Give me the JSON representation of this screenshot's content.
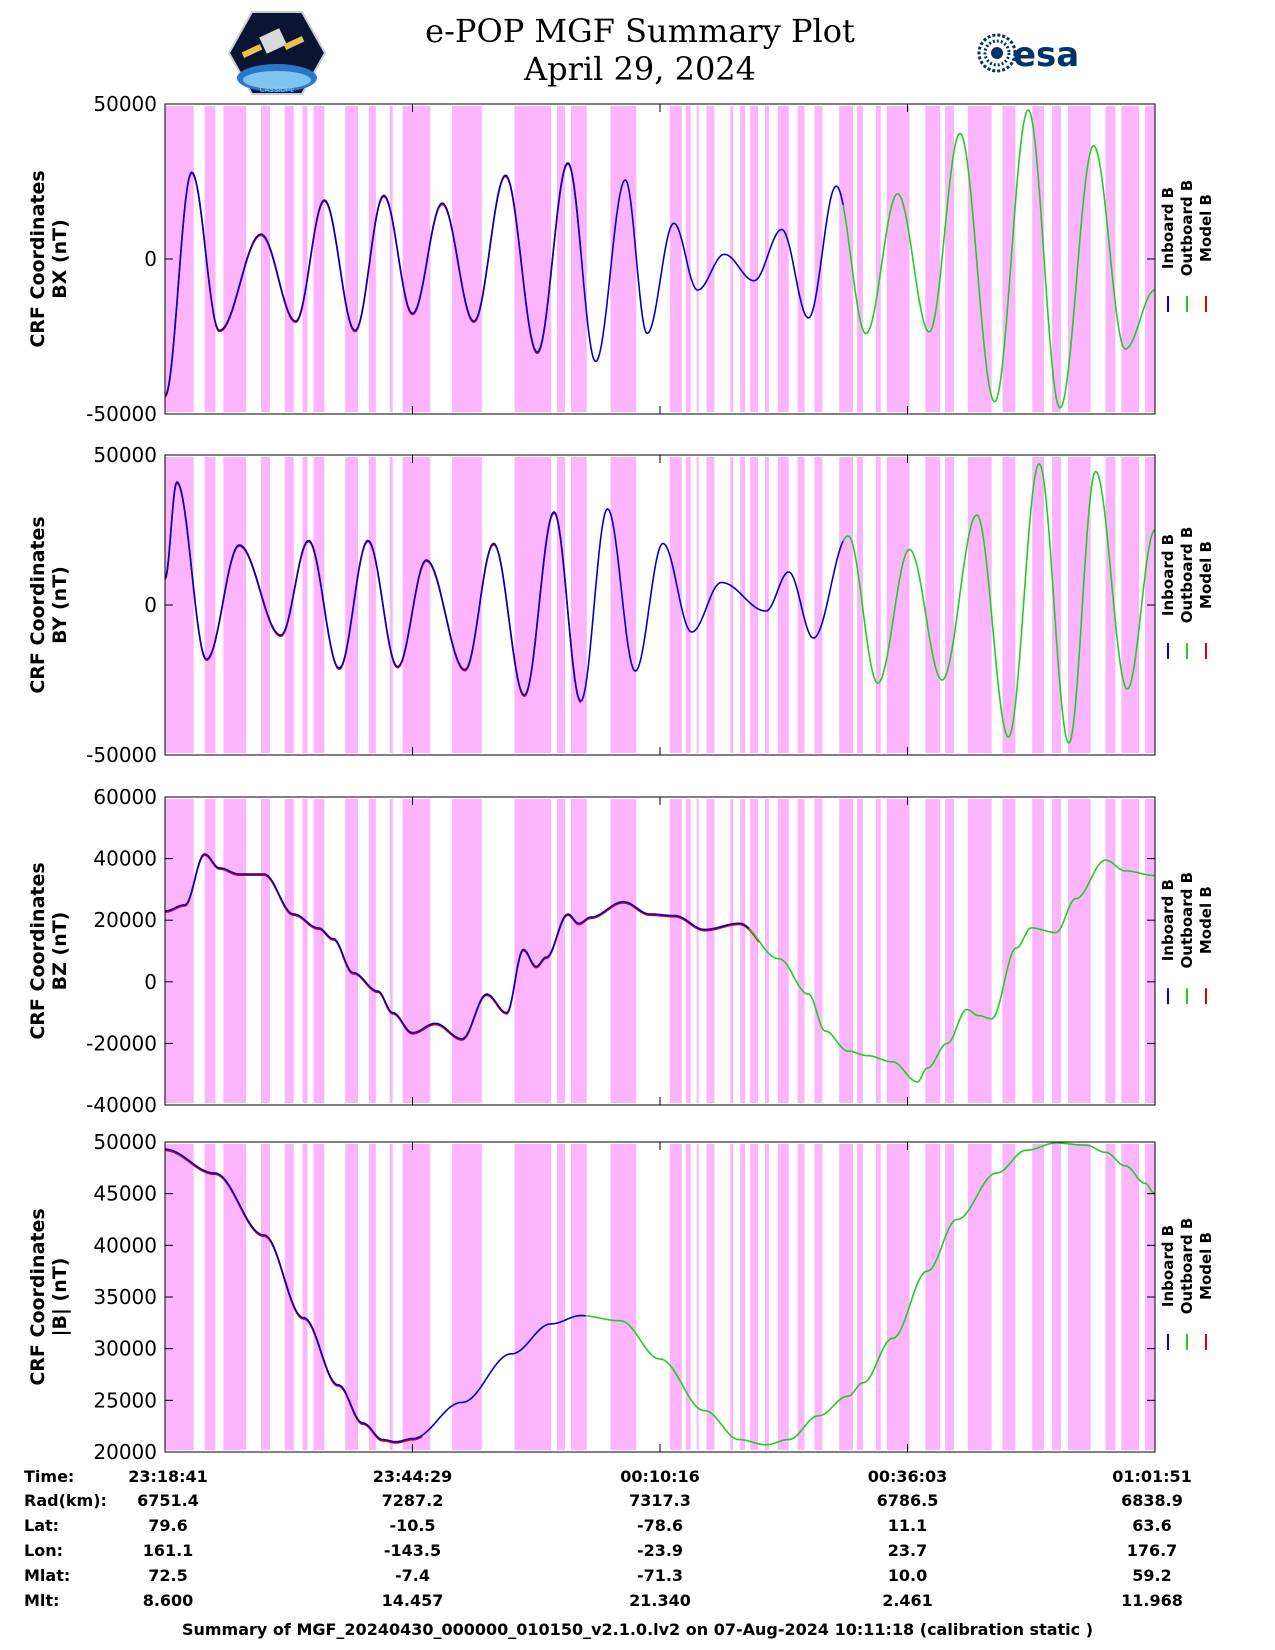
{
  "header": {
    "title": "e-POP MGF Summary Plot",
    "subtitle": "April 29, 2024",
    "logo_left_text": "CASSIOPE",
    "logo_right_text": "esa"
  },
  "colors": {
    "background": "#ffffff",
    "gap_band": "#fcb4fc",
    "inboard": "#0000cc",
    "outboard": "#22cc22",
    "model": "#dd0000",
    "axis": "#000000",
    "esa_brand": "#003366"
  },
  "chart_data": [
    {
      "type": "line",
      "ylabel": [
        "CRF Coordinates",
        "BX (nT)"
      ],
      "ylim": [
        -50000,
        50000
      ],
      "yticks": [
        50000,
        0,
        -50000
      ],
      "legend": [
        "Inboard B",
        "Outboard B",
        "Model B"
      ],
      "legend_placement": "right",
      "peaks_t": [
        0.0,
        0.027,
        0.055,
        0.097,
        0.132,
        0.161,
        0.192,
        0.221,
        0.25,
        0.28,
        0.312,
        0.344,
        0.376,
        0.407,
        0.435,
        0.465,
        0.487,
        0.514,
        0.538,
        0.565,
        0.595,
        0.623,
        0.65,
        0.678,
        0.708,
        0.74,
        0.772,
        0.803,
        0.838,
        0.872,
        0.904,
        0.938,
        0.97,
        1.0
      ],
      "peaks_value": [
        -44000,
        28000,
        -23000,
        8000,
        -20000,
        19000,
        -23000,
        20500,
        -17500,
        18000,
        -20000,
        27000,
        -30000,
        31000,
        -33000,
        25500,
        -24000,
        11500,
        -10000,
        1500,
        -7000,
        9500,
        -19000,
        23500,
        -24000,
        21000,
        -23500,
        40500,
        -46000,
        48000,
        -48000,
        36500,
        -29000,
        -10000
      ]
    },
    {
      "type": "line",
      "ylabel": [
        "CRF Coordinates",
        "BY (nT)"
      ],
      "ylim": [
        -50000,
        50000
      ],
      "yticks": [
        50000,
        0,
        -50000
      ],
      "legend": [
        "Inboard B",
        "Outboard B",
        "Model B"
      ],
      "legend_placement": "right",
      "peaks_t": [
        0.0,
        0.012,
        0.042,
        0.075,
        0.117,
        0.145,
        0.176,
        0.205,
        0.235,
        0.264,
        0.303,
        0.332,
        0.363,
        0.393,
        0.42,
        0.447,
        0.475,
        0.503,
        0.532,
        0.562,
        0.607,
        0.63,
        0.655,
        0.69,
        0.72,
        0.752,
        0.785,
        0.82,
        0.852,
        0.883,
        0.913,
        0.94,
        0.972,
        1.0
      ],
      "peaks_value": [
        9000,
        41000,
        -18000,
        20000,
        -10000,
        21500,
        -21000,
        21500,
        -20500,
        15000,
        -21500,
        20500,
        -30000,
        31000,
        -32000,
        32000,
        -22000,
        20500,
        -9000,
        7500,
        -2000,
        11000,
        -11000,
        23000,
        -26000,
        18500,
        -25000,
        30000,
        -44000,
        47000,
        -46000,
        44500,
        -28000,
        25000
      ]
    },
    {
      "type": "line",
      "ylabel": [
        "CRF Coordinates",
        "BZ (nT)"
      ],
      "ylim": [
        -40000,
        60000
      ],
      "yticks": [
        60000,
        40000,
        20000,
        0,
        -20000,
        -40000
      ],
      "legend": [
        "Inboard B",
        "Outboard B",
        "Model B"
      ],
      "legend_placement": "right",
      "points_t": [
        0.0,
        0.02,
        0.04,
        0.055,
        0.075,
        0.1,
        0.13,
        0.155,
        0.17,
        0.19,
        0.215,
        0.23,
        0.25,
        0.273,
        0.3,
        0.325,
        0.345,
        0.362,
        0.375,
        0.385,
        0.407,
        0.418,
        0.43,
        0.463,
        0.49,
        0.515,
        0.545,
        0.58,
        0.62,
        0.65,
        0.667,
        0.69,
        0.71,
        0.735,
        0.76,
        0.77,
        0.79,
        0.81,
        0.822,
        0.835,
        0.86,
        0.875,
        0.9,
        0.92,
        0.95,
        0.97,
        1.0
      ],
      "points_value": [
        23000,
        25000,
        41500,
        37000,
        35000,
        35000,
        22000,
        17500,
        14000,
        3000,
        -3000,
        -10000,
        -16500,
        -13500,
        -18500,
        -4000,
        -10000,
        10500,
        5000,
        8000,
        22000,
        19000,
        21000,
        26000,
        22000,
        21500,
        17000,
        19000,
        7500,
        -4000,
        -16000,
        -22500,
        -24000,
        -26000,
        -32500,
        -28000,
        -20000,
        -9000,
        -11000,
        -12000,
        11000,
        17500,
        16000,
        27000,
        39500,
        36000,
        34500
      ]
    },
    {
      "type": "line",
      "ylabel": [
        "CRF Coordinates",
        "|B| (nT)"
      ],
      "ylim": [
        20000,
        50000
      ],
      "yticks": [
        50000,
        45000,
        40000,
        35000,
        30000,
        25000,
        20000
      ],
      "legend": [
        "Inboard B",
        "Outboard B",
        "Model B"
      ],
      "legend_placement": "right",
      "points_t": [
        0.0,
        0.05,
        0.1,
        0.14,
        0.175,
        0.2,
        0.22,
        0.233,
        0.25,
        0.3,
        0.35,
        0.39,
        0.42,
        0.46,
        0.5,
        0.545,
        0.58,
        0.607,
        0.63,
        0.66,
        0.69,
        0.705,
        0.735,
        0.77,
        0.8,
        0.84,
        0.87,
        0.9,
        0.93,
        0.95,
        0.97,
        0.99,
        1.0
      ],
      "points_value": [
        49300,
        47000,
        41000,
        33000,
        26500,
        22800,
        21200,
        21000,
        21300,
        24800,
        29500,
        32400,
        33200,
        32700,
        29000,
        24000,
        21200,
        20700,
        21200,
        23500,
        25400,
        26700,
        31000,
        37500,
        42500,
        47000,
        49200,
        49900,
        49700,
        49000,
        47700,
        46000,
        45000
      ]
    }
  ],
  "gap_bands": [
    [
      0.0,
      0.029
    ],
    [
      0.04,
      0.051
    ],
    [
      0.059,
      0.082
    ],
    [
      0.097,
      0.106
    ],
    [
      0.121,
      0.13
    ],
    [
      0.139,
      0.144
    ],
    [
      0.15,
      0.161
    ],
    [
      0.182,
      0.195
    ],
    [
      0.206,
      0.213
    ],
    [
      0.227,
      0.23
    ],
    [
      0.24,
      0.268
    ],
    [
      0.29,
      0.32
    ],
    [
      0.353,
      0.39
    ],
    [
      0.396,
      0.404
    ],
    [
      0.41,
      0.426
    ],
    [
      0.45,
      0.476
    ],
    [
      0.51,
      0.522
    ],
    [
      0.526,
      0.531
    ],
    [
      0.537,
      0.539
    ],
    [
      0.547,
      0.555
    ],
    [
      0.571,
      0.574
    ],
    [
      0.581,
      0.586
    ],
    [
      0.591,
      0.599
    ],
    [
      0.606,
      0.61
    ],
    [
      0.619,
      0.63
    ],
    [
      0.639,
      0.646
    ],
    [
      0.656,
      0.664
    ],
    [
      0.681,
      0.695
    ],
    [
      0.699,
      0.705
    ],
    [
      0.718,
      0.723
    ],
    [
      0.729,
      0.752
    ],
    [
      0.768,
      0.783
    ],
    [
      0.788,
      0.797
    ],
    [
      0.811,
      0.835
    ],
    [
      0.846,
      0.859
    ],
    [
      0.876,
      0.888
    ],
    [
      0.896,
      0.905
    ],
    [
      0.912,
      0.935
    ],
    [
      0.95,
      0.96
    ],
    [
      0.966,
      0.984
    ],
    [
      0.99,
      1.0
    ]
  ],
  "segments": {
    "model_end_t": 0.42,
    "inboard_end_t": 0.685,
    "outboard_start_t": 0.685
  },
  "bz_inboard_end_t": 0.59,
  "absb_inboard_end_t": 0.425,
  "info_rows": {
    "labels": [
      "Time:",
      "Rad(km):",
      "Lat:",
      "Lon:",
      "Mlat:",
      "Mlt:"
    ],
    "columns": [
      [
        "23:18:41",
        "6751.4",
        "79.6",
        "161.1",
        "72.5",
        "8.600"
      ],
      [
        "23:44:29",
        "7287.2",
        "-10.5",
        "-143.5",
        "-7.4",
        "14.457"
      ],
      [
        "00:10:16",
        "7317.3",
        "-78.6",
        "-23.9",
        "-71.3",
        "21.340"
      ],
      [
        "00:36:03",
        "6786.5",
        "11.1",
        "23.7",
        "10.0",
        "2.461"
      ],
      [
        "01:01:51",
        "6838.9",
        "63.6",
        "176.7",
        "59.2",
        "11.968"
      ]
    ]
  },
  "footer": "Summary of MGF_20240430_000000_010150_v2.1.0.lv2 on 07-Aug-2024 10:11:18 (calibration static )"
}
